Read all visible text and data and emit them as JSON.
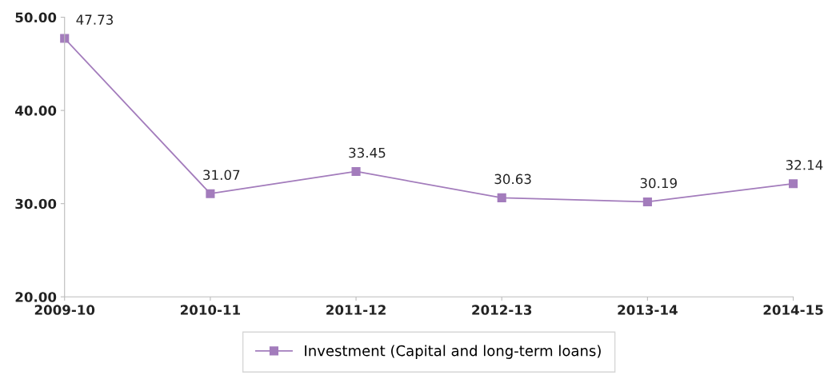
{
  "chart_data": {
    "type": "line",
    "categories": [
      "2009-10",
      "2010-11",
      "2011-12",
      "2012-13",
      "2013-14",
      "2014-15"
    ],
    "series": [
      {
        "name": "Investment (Capital and long-term loans)",
        "color": "#a37cbc",
        "values": [
          47.73,
          31.07,
          33.45,
          30.63,
          30.19,
          32.14
        ]
      }
    ],
    "ylim": [
      20,
      50
    ],
    "yticks": [
      {
        "value": 20,
        "label": "20.00"
      },
      {
        "value": 30,
        "label": "30.00"
      },
      {
        "value": 40,
        "label": "40.00"
      },
      {
        "value": 50,
        "label": "50.00"
      }
    ],
    "data_labels": true,
    "grid": false,
    "legend": "bottom",
    "marker": "square",
    "line_style": "solid"
  }
}
